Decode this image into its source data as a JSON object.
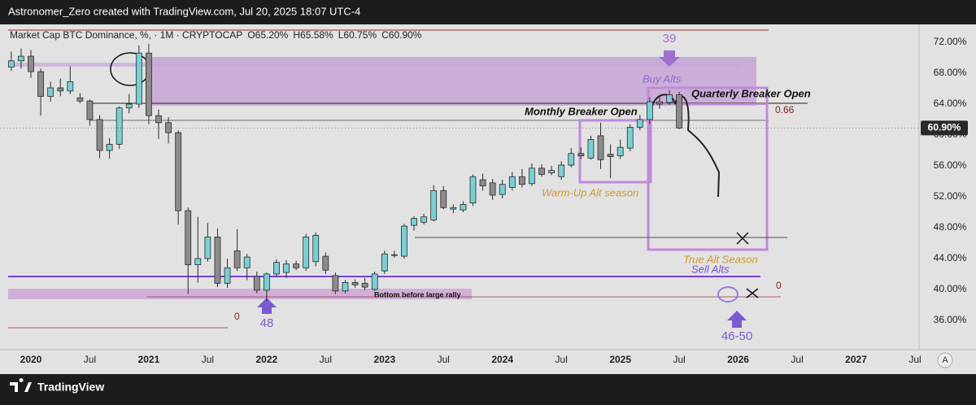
{
  "header": "Astronomer_Zero created with TradingView.com, Jul 20, 2025 18:07 UTC-4",
  "footer": "TradingView",
  "auto_button": "A",
  "chart_data": {
    "type": "candlestick",
    "legend": "Market Cap BTC Dominance, %, · 1M · CRYPTOCAP",
    "legend_ohlc": [
      "O65.20%",
      "H65.58%",
      "L60.75%",
      "C60.90%"
    ],
    "up_color": "#76d1d5",
    "down_color": "#8c8c8c",
    "border_color": "#2a2a2a",
    "x": [
      "2019-11",
      "2019-12",
      "2020-01",
      "2020-02",
      "2020-03",
      "2020-04",
      "2020-05",
      "2020-06",
      "2020-07",
      "2020-08",
      "2020-09",
      "2020-10",
      "2020-11",
      "2020-12",
      "2021-01",
      "2021-02",
      "2021-03",
      "2021-04",
      "2021-05",
      "2021-06",
      "2021-07",
      "2021-08",
      "2021-09",
      "2021-10",
      "2021-11",
      "2021-12",
      "2022-01",
      "2022-02",
      "2022-03",
      "2022-04",
      "2022-05",
      "2022-06",
      "2022-07",
      "2022-08",
      "2022-09",
      "2022-10",
      "2022-11",
      "2022-12",
      "2023-01",
      "2023-02",
      "2023-03",
      "2023-04",
      "2023-05",
      "2023-06",
      "2023-07",
      "2023-08",
      "2023-09",
      "2023-10",
      "2023-11",
      "2023-12",
      "2024-01",
      "2024-02",
      "2024-03",
      "2024-04",
      "2024-05",
      "2024-06",
      "2024-07",
      "2024-08",
      "2024-09",
      "2024-10",
      "2024-11",
      "2024-12",
      "2025-01",
      "2025-02",
      "2025-03",
      "2025-04",
      "2025-05",
      "2025-06",
      "2025-07"
    ],
    "open": [
      68.8,
      69.6,
      70.2,
      68.2,
      65.0,
      66.1,
      65.7,
      64.8,
      64.4,
      62.0,
      58.0,
      58.8,
      63.5,
      64.0,
      70.6,
      62.5,
      61.6,
      60.3,
      50.2,
      43.2,
      44.0,
      46.8,
      40.8,
      45.0,
      42.8,
      41.7,
      39.9,
      42.0,
      42.2,
      43.3,
      42.8,
      43.6,
      44.3,
      41.8,
      39.8,
      40.9,
      40.8,
      40.0,
      42.4,
      44.4,
      44.3,
      48.3,
      48.7,
      49.0,
      52.8,
      50.4,
      50.3,
      51.2,
      54.2,
      53.8,
      52.3,
      53.2,
      54.6,
      53.7,
      55.7,
      55.1,
      54.6,
      56.1,
      57.6,
      57.0,
      59.9,
      57.5,
      57.3,
      58.3,
      61.0,
      62.0,
      64.3,
      64.2,
      65.2
    ],
    "high": [
      70.8,
      71.2,
      71.0,
      68.6,
      66.9,
      67.3,
      68.9,
      65.4,
      64.6,
      62.6,
      59.6,
      63.7,
      65.3,
      71.6,
      71.8,
      63.3,
      62.3,
      60.6,
      50.6,
      49.4,
      48.6,
      47.9,
      44.0,
      47.8,
      44.6,
      42.3,
      42.2,
      43.9,
      43.8,
      43.7,
      47.2,
      47.4,
      44.8,
      42.2,
      41.2,
      41.3,
      41.5,
      42.3,
      45.0,
      45.0,
      48.5,
      49.5,
      49.8,
      53.5,
      53.4,
      51.0,
      51.4,
      54.9,
      55.0,
      54.3,
      54.2,
      55.2,
      55.6,
      56.3,
      56.2,
      56.0,
      56.6,
      58.3,
      58.4,
      59.9,
      61.6,
      58.8,
      59.4,
      61.4,
      62.6,
      64.9,
      64.9,
      65.8,
      65.58
    ],
    "low": [
      68.3,
      68.6,
      67.4,
      62.5,
      64.3,
      65.0,
      65.3,
      64.1,
      61.2,
      57.0,
      56.9,
      58.2,
      62.8,
      63.5,
      61.4,
      59.5,
      58.9,
      48.4,
      39.4,
      40.9,
      43.6,
      40.3,
      40.2,
      42.4,
      41.2,
      39.5,
      38.5,
      41.6,
      41.5,
      42.5,
      42.4,
      43.0,
      42.0,
      39.4,
      39.5,
      40.2,
      39.9,
      39.8,
      42.0,
      44.1,
      44.0,
      47.6,
      48.4,
      48.8,
      50.4,
      49.9,
      50.0,
      50.8,
      52.8,
      51.6,
      51.8,
      52.8,
      53.2,
      53.4,
      54.6,
      54.8,
      54.2,
      55.8,
      56.9,
      56.8,
      55.6,
      54.4,
      56.9,
      57.9,
      60.6,
      61.4,
      63.4,
      63.9,
      60.75
    ],
    "close": [
      69.6,
      70.2,
      68.2,
      65.0,
      66.1,
      65.7,
      66.9,
      64.4,
      62.0,
      58.0,
      58.8,
      63.5,
      64.0,
      70.6,
      62.5,
      61.6,
      60.3,
      50.2,
      43.2,
      44.0,
      46.8,
      40.8,
      42.8,
      42.8,
      44.2,
      39.9,
      42.0,
      43.5,
      43.3,
      42.8,
      46.8,
      47.0,
      42.5,
      39.8,
      40.9,
      40.6,
      40.3,
      42.0,
      44.6,
      44.5,
      48.2,
      49.2,
      49.4,
      52.8,
      50.6,
      50.6,
      51.0,
      54.6,
      53.4,
      52.2,
      53.6,
      54.6,
      53.6,
      55.7,
      54.9,
      55.4,
      56.1,
      57.6,
      57.3,
      59.4,
      56.8,
      57.2,
      58.4,
      61.0,
      62.0,
      64.3,
      64.0,
      65.2,
      60.9
    ],
    "last_price": {
      "value": 60.9,
      "label": "60.90%"
    },
    "xlim": [
      "2019-10",
      "2027-07"
    ],
    "xticks": [
      {
        "value": "2020-01",
        "label": "2020"
      },
      {
        "value": "2020-07",
        "label": "Jul"
      },
      {
        "value": "2021-01",
        "label": "2021"
      },
      {
        "value": "2021-07",
        "label": "Jul"
      },
      {
        "value": "2022-01",
        "label": "2022"
      },
      {
        "value": "2022-07",
        "label": "Jul"
      },
      {
        "value": "2023-01",
        "label": "2023"
      },
      {
        "value": "2023-07",
        "label": "Jul"
      },
      {
        "value": "2024-01",
        "label": "2024"
      },
      {
        "value": "2024-07",
        "label": "Jul"
      },
      {
        "value": "2025-01",
        "label": "2025"
      },
      {
        "value": "2025-07",
        "label": "Jul"
      },
      {
        "value": "2026-01",
        "label": "2026"
      },
      {
        "value": "2026-07",
        "label": "Jul"
      },
      {
        "value": "2027-01",
        "label": "2027"
      },
      {
        "value": "2027-07",
        "label": "Jul"
      }
    ],
    "ylim": [
      32.2,
      73.58
    ],
    "yticks": [
      {
        "value": 36,
        "label": "36.00%"
      },
      {
        "value": 40,
        "label": "40.00%"
      },
      {
        "value": 44,
        "label": "44.00%"
      },
      {
        "value": 48,
        "label": "48.00%"
      },
      {
        "value": 52,
        "label": "52.00%"
      },
      {
        "value": 56,
        "label": "56.00%"
      },
      {
        "value": 60,
        "label": "60.00%"
      },
      {
        "value": 64,
        "label": "64.00%"
      },
      {
        "value": 68,
        "label": "68.00%"
      },
      {
        "value": 72,
        "label": "72.00%"
      }
    ],
    "grid": false,
    "annotations": {
      "count_top": "39",
      "buy": "Buy Alts",
      "quarterly": "Quarterly Breaker Open",
      "fib_top": "0.66",
      "monthly": "Monthly Breaker Open",
      "warmup": "Warm-Up Alt season",
      "true_alt": "True Alt Season",
      "sell": "Sell Alts",
      "zero_right": "0",
      "zero_left": "0",
      "count_bottom": "48",
      "count_future": "46-50",
      "bottom": "Bottom before large rally"
    }
  }
}
